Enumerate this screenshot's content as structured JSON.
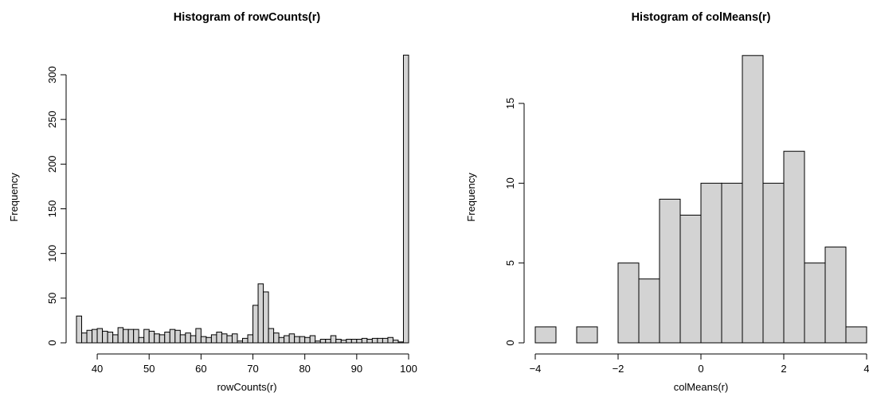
{
  "chart_data": [
    {
      "type": "bar",
      "title": "Histogram of rowCounts(r)",
      "xlabel": "rowCounts(r)",
      "ylabel": "Frequency",
      "xlim": [
        36,
        100
      ],
      "ylim": [
        0,
        300
      ],
      "x_ticks": [
        "40",
        "50",
        "60",
        "70",
        "80",
        "90",
        "100"
      ],
      "y_ticks": [
        "0",
        "50",
        "100",
        "150",
        "200",
        "250",
        "300"
      ],
      "bin_start": 36,
      "bin_width": 1,
      "values": [
        30,
        11,
        14,
        15,
        16,
        13,
        12,
        9,
        17,
        15,
        15,
        15,
        6,
        15,
        13,
        10,
        9,
        12,
        15,
        14,
        9,
        11,
        8,
        16,
        7,
        6,
        9,
        12,
        10,
        8,
        10,
        2,
        5,
        9,
        42,
        66,
        57,
        16,
        11,
        6,
        8,
        10,
        7,
        7,
        6,
        8,
        2,
        4,
        4,
        8,
        4,
        3,
        4,
        4,
        4,
        5,
        4,
        5,
        5,
        5,
        6,
        3,
        1,
        322
      ],
      "grid": false
    },
    {
      "type": "bar",
      "title": "Histogram of colMeans(r)",
      "xlabel": "colMeans(r)",
      "ylabel": "Frequency",
      "xlim": [
        -4,
        4
      ],
      "ylim": [
        0,
        15
      ],
      "x_ticks": [
        "−4",
        "−2",
        "0",
        "2",
        "4"
      ],
      "y_ticks": [
        "0",
        "5",
        "10",
        "15"
      ],
      "bin_start": -4,
      "bin_width": 0.5,
      "values": [
        1,
        0,
        1,
        0,
        5,
        4,
        9,
        8,
        10,
        10,
        18,
        10,
        12,
        5,
        6,
        1
      ],
      "grid": false
    }
  ]
}
